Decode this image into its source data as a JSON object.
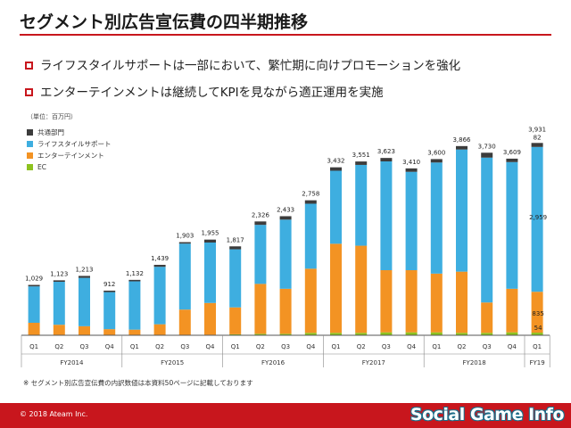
{
  "title": "セグメント別広告宣伝費の四半期推移",
  "bullets": [
    "ライフスタイルサポートは一部において、繁忙期に向けプロモーションを強化",
    "エンターテインメントは継続してKPIを見ながら適正運用を実施"
  ],
  "colors": {
    "accent": "#c8161d"
  },
  "footnote": "※ セグメント別広告宣伝費の内訳数値は本資料50ページに記載しております",
  "footer": {
    "copyright": "© 2018 Ateam Inc.",
    "watermark": "Social Game Info"
  },
  "chart_data": {
    "type": "bar",
    "stacked": true,
    "unit_label": "（単位：百万円）",
    "categories": [
      "Q1",
      "Q2",
      "Q3",
      "Q4",
      "Q1",
      "Q2",
      "Q3",
      "Q4",
      "Q1",
      "Q2",
      "Q3",
      "Q4",
      "Q1",
      "Q2",
      "Q3",
      "Q4",
      "Q1",
      "Q2",
      "Q3",
      "Q4",
      "Q1"
    ],
    "fiscal_years": [
      {
        "label": "FY2014",
        "count": 4
      },
      {
        "label": "FY2015",
        "count": 4
      },
      {
        "label": "FY2016",
        "count": 4
      },
      {
        "label": "FY2017",
        "count": 4
      },
      {
        "label": "FY2018",
        "count": 4
      },
      {
        "label": "FY19",
        "count": 1
      }
    ],
    "totals": [
      "1,029",
      "1,123",
      "1,213",
      "912",
      "1,132",
      "1,439",
      "1,903",
      "1,955",
      "1,817",
      "2,326",
      "2,433",
      "2,758",
      "3,432",
      "3,551",
      "3,623",
      "3,410",
      "3,600",
      "3,866",
      "3,730",
      "3,609",
      "3,931"
    ],
    "total_values": [
      1029,
      1123,
      1213,
      912,
      1132,
      1439,
      1903,
      1955,
      1817,
      2326,
      2433,
      2758,
      3432,
      3551,
      3623,
      3410,
      3600,
      3866,
      3730,
      3609,
      3931
    ],
    "series": [
      {
        "name": "EC",
        "color": "#8dc21f",
        "values": [
          5,
          5,
          5,
          5,
          5,
          5,
          5,
          10,
          20,
          30,
          30,
          50,
          50,
          50,
          60,
          60,
          60,
          50,
          50,
          60,
          54
        ]
      },
      {
        "name": "エンターテインメント",
        "color": "#f39323",
        "values": [
          250,
          210,
          180,
          120,
          110,
          220,
          520,
          650,
          550,
          1020,
          920,
          1310,
          1820,
          1780,
          1270,
          1270,
          1200,
          1250,
          620,
          890,
          835
        ]
      },
      {
        "name": "ライフスタイルサポート",
        "color": "#3eaee0",
        "values": [
          744,
          878,
          988,
          757,
          987,
          1174,
          1348,
          1235,
          1187,
          1206,
          1413,
          1328,
          1492,
          1651,
          2223,
          2010,
          2270,
          2496,
          2960,
          2589,
          2959
        ]
      },
      {
        "name": "共通部門",
        "color": "#3c3c3c",
        "values": [
          30,
          30,
          40,
          30,
          30,
          40,
          30,
          60,
          60,
          70,
          70,
          70,
          70,
          70,
          70,
          70,
          70,
          70,
          100,
          70,
          82
        ]
      }
    ],
    "last_bar_labels": [
      "82",
      "2,959",
      "835",
      "54"
    ],
    "ylim": [
      0,
      4300
    ],
    "grid": false,
    "legend_position": "top-left"
  }
}
